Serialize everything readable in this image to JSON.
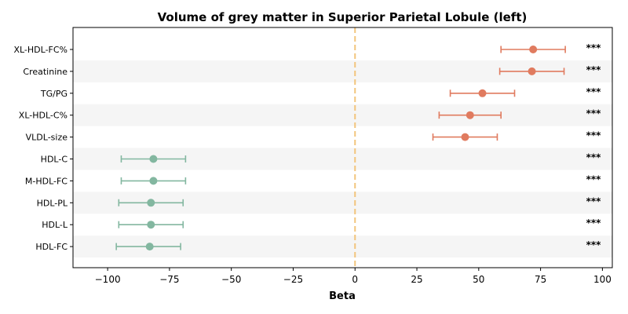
{
  "chart_data": {
    "type": "forest",
    "title": "Volume of grey matter in Superior Parietal Lobule (left)",
    "xlabel": "Beta",
    "ylabel": "",
    "xlim": [
      -114,
      104
    ],
    "xticks": [
      -100,
      -75,
      -50,
      -25,
      0,
      25,
      50,
      75,
      100
    ],
    "xtick_labels": [
      "−100",
      "−75",
      "−50",
      "−25",
      "0",
      "25",
      "50",
      "75",
      "100"
    ],
    "reference_line": 0,
    "grid": false,
    "row_banding": true,
    "colors": {
      "positive": "#e07b5f",
      "negative": "#83b7a0",
      "reference_line": "#f2c57c",
      "band": "#f5f5f5"
    },
    "rows": [
      {
        "label": "XL-HDL-FC%",
        "beta": 72.0,
        "ci": [
          59.0,
          85.0
        ],
        "sig": "***"
      },
      {
        "label": "Creatinine",
        "beta": 71.5,
        "ci": [
          58.5,
          84.5
        ],
        "sig": "***"
      },
      {
        "label": "TG/PG",
        "beta": 51.5,
        "ci": [
          38.5,
          64.5
        ],
        "sig": "***"
      },
      {
        "label": "XL-HDL-C%",
        "beta": 46.5,
        "ci": [
          34.0,
          59.0
        ],
        "sig": "***"
      },
      {
        "label": "VLDL-size",
        "beta": 44.5,
        "ci": [
          31.5,
          57.5
        ],
        "sig": "***"
      },
      {
        "label": "HDL-C",
        "beta": -81.5,
        "ci": [
          -94.5,
          -68.5
        ],
        "sig": "***"
      },
      {
        "label": "M-HDL-FC",
        "beta": -81.5,
        "ci": [
          -94.5,
          -68.5
        ],
        "sig": "***"
      },
      {
        "label": "HDL-PL",
        "beta": -82.5,
        "ci": [
          -95.5,
          -69.5
        ],
        "sig": "***"
      },
      {
        "label": "HDL-L",
        "beta": -82.5,
        "ci": [
          -95.5,
          -69.5
        ],
        "sig": "***"
      },
      {
        "label": "HDL-FC",
        "beta": -83.0,
        "ci": [
          -96.5,
          -70.5
        ],
        "sig": "***"
      }
    ]
  }
}
